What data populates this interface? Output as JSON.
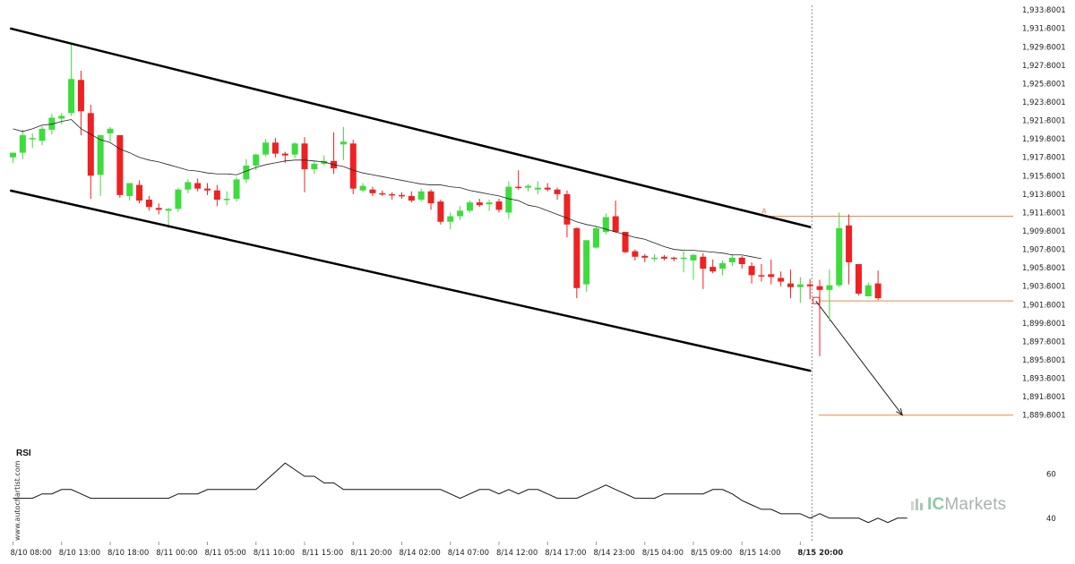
{
  "chart_data": [
    {
      "type": "candlestick",
      "colors": {
        "up": "#3ddc3d",
        "down": "#ee2222",
        "ma": "#222222",
        "channel": "#000000",
        "level": "#e8894a"
      },
      "y_ticks": [
        "1,933.8001",
        "1,931.8001",
        "1,929.8001",
        "1,927.8001",
        "1,925.8001",
        "1,923.8001",
        "1,921.8001",
        "1,919.8001",
        "1,917.8001",
        "1,915.8001",
        "1,913.8001",
        "1,911.8001",
        "1,909.8001",
        "1,907.8001",
        "1,905.8001",
        "1,903.8001",
        "1,901.8001",
        "1,899.8001",
        "1,897.8001",
        "1,895.8001",
        "1,893.8001",
        "1,891.8001",
        "1,889.8001"
      ],
      "ylim": [
        1888.8,
        1934.3
      ],
      "x_ticks": [
        {
          "label": "8/10 08:00",
          "i": 0
        },
        {
          "label": "8/10 13:00",
          "i": 5
        },
        {
          "label": "8/10 18:00",
          "i": 10
        },
        {
          "label": "8/11 00:00",
          "i": 15
        },
        {
          "label": "8/11 05:00",
          "i": 20
        },
        {
          "label": "8/11 10:00",
          "i": 25
        },
        {
          "label": "8/11 15:00",
          "i": 30
        },
        {
          "label": "8/11 20:00",
          "i": 35
        },
        {
          "label": "8/14 02:00",
          "i": 40
        },
        {
          "label": "8/14 07:00",
          "i": 45
        },
        {
          "label": "8/14 12:00",
          "i": 50
        },
        {
          "label": "8/14 17:00",
          "i": 55
        },
        {
          "label": "8/14 23:00",
          "i": 60
        },
        {
          "label": "8/15 04:00",
          "i": 65
        },
        {
          "label": "8/15 09:00",
          "i": 70
        },
        {
          "label": "8/15 14:00",
          "i": 75
        },
        {
          "label": "8/15 20:00",
          "i": 81,
          "bold": true
        }
      ],
      "candles": [
        [
          1917.8,
          1918.3,
          1917.2,
          1918.3
        ],
        [
          1918.3,
          1920.8,
          1917.6,
          1920.2
        ],
        [
          1919.8,
          1920.4,
          1918.8,
          1919.9
        ],
        [
          1919.6,
          1921.2,
          1919.1,
          1920.9
        ],
        [
          1920.8,
          1922.5,
          1920.3,
          1922.1
        ],
        [
          1922.0,
          1922.6,
          1921.4,
          1922.3
        ],
        [
          1922.6,
          1930.1,
          1922.3,
          1926.3
        ],
        [
          1926.2,
          1927.2,
          1920.2,
          1922.8
        ],
        [
          1922.6,
          1923.5,
          1913.3,
          1915.8
        ],
        [
          1915.9,
          1920.2,
          1913.6,
          1920.2
        ],
        [
          1920.4,
          1921.1,
          1919.5,
          1920.9
        ],
        [
          1920.2,
          1920.2,
          1913.4,
          1913.7
        ],
        [
          1913.6,
          1915.0,
          1913.1,
          1915.0
        ],
        [
          1914.8,
          1915.3,
          1912.8,
          1913.1
        ],
        [
          1913.2,
          1913.6,
          1912.0,
          1912.4
        ],
        [
          1912.3,
          1912.8,
          1911.6,
          1912.1
        ],
        [
          1912.0,
          1912.3,
          1910.1,
          1912.2
        ],
        [
          1912.2,
          1914.5,
          1911.9,
          1914.3
        ],
        [
          1914.3,
          1915.4,
          1913.9,
          1915.1
        ],
        [
          1915.0,
          1915.5,
          1914.1,
          1914.4
        ],
        [
          1914.4,
          1915.0,
          1913.7,
          1914.2
        ],
        [
          1914.2,
          1914.8,
          1912.5,
          1913.2
        ],
        [
          1913.3,
          1914.1,
          1912.6,
          1913.3
        ],
        [
          1913.3,
          1915.6,
          1913.0,
          1915.4
        ],
        [
          1915.4,
          1917.6,
          1915.0,
          1916.9
        ],
        [
          1916.9,
          1918.2,
          1916.4,
          1918.1
        ],
        [
          1918.1,
          1919.8,
          1917.9,
          1919.4
        ],
        [
          1919.4,
          1919.9,
          1917.8,
          1918.2
        ],
        [
          1918.2,
          1918.4,
          1917.2,
          1918.0
        ],
        [
          1918.1,
          1919.4,
          1917.7,
          1919.3
        ],
        [
          1919.3,
          1920.0,
          1914.0,
          1916.5
        ],
        [
          1916.5,
          1917.4,
          1916.0,
          1917.1
        ],
        [
          1917.1,
          1918.0,
          1916.9,
          1917.4
        ],
        [
          1917.4,
          1920.5,
          1916.0,
          1916.6
        ],
        [
          1919.2,
          1921.1,
          1917.5,
          1919.5
        ],
        [
          1919.3,
          1919.7,
          1913.8,
          1914.4
        ],
        [
          1914.2,
          1915.0,
          1914.0,
          1914.7
        ],
        [
          1914.3,
          1914.6,
          1913.6,
          1913.9
        ],
        [
          1913.9,
          1914.2,
          1913.6,
          1913.8
        ],
        [
          1913.8,
          1914.0,
          1913.2,
          1913.7
        ],
        [
          1913.7,
          1914.0,
          1913.3,
          1913.6
        ],
        [
          1913.6,
          1914.1,
          1912.9,
          1913.1
        ],
        [
          1913.2,
          1914.4,
          1913.0,
          1914.1
        ],
        [
          1914.1,
          1914.3,
          1912.1,
          1912.8
        ],
        [
          1913.0,
          1913.2,
          1910.5,
          1910.8
        ],
        [
          1910.8,
          1911.8,
          1910.0,
          1911.4
        ],
        [
          1911.4,
          1912.5,
          1911.0,
          1912.0
        ],
        [
          1912.0,
          1913.1,
          1911.8,
          1912.9
        ],
        [
          1912.9,
          1913.3,
          1912.4,
          1912.6
        ],
        [
          1912.7,
          1913.2,
          1912.0,
          1912.9
        ],
        [
          1913.0,
          1913.3,
          1911.8,
          1912.1
        ],
        [
          1911.8,
          1915.2,
          1911.1,
          1914.6
        ],
        [
          1914.6,
          1916.4,
          1914.3,
          1914.5
        ],
        [
          1914.5,
          1914.9,
          1914.1,
          1914.7
        ],
        [
          1914.3,
          1915.2,
          1913.8,
          1914.5
        ],
        [
          1914.5,
          1915.0,
          1914.1,
          1914.3
        ],
        [
          1914.3,
          1914.5,
          1913.2,
          1913.8
        ],
        [
          1913.8,
          1914.2,
          1909.1,
          1910.5
        ],
        [
          1910.1,
          1910.2,
          1902.5,
          1903.6
        ],
        [
          1904.0,
          1908.8,
          1903.2,
          1908.8
        ],
        [
          1908.0,
          1910.3,
          1907.9,
          1910.1
        ],
        [
          1909.7,
          1911.7,
          1909.4,
          1911.3
        ],
        [
          1911.4,
          1913.1,
          1909.6,
          1909.7
        ],
        [
          1909.7,
          1909.7,
          1907.4,
          1907.5
        ],
        [
          1907.6,
          1907.8,
          1906.6,
          1907.0
        ],
        [
          1907.1,
          1907.3,
          1906.4,
          1906.9
        ],
        [
          1906.9,
          1907.3,
          1906.5,
          1906.9
        ],
        [
          1907.0,
          1907.2,
          1906.6,
          1906.8
        ],
        [
          1906.9,
          1907.0,
          1906.5,
          1906.8
        ],
        [
          1906.8,
          1907.6,
          1905.3,
          1906.9
        ],
        [
          1906.6,
          1907.3,
          1904.5,
          1907.2
        ],
        [
          1907.0,
          1907.4,
          1903.5,
          1905.7
        ],
        [
          1905.9,
          1906.7,
          1905.2,
          1905.4
        ],
        [
          1905.7,
          1906.6,
          1905.0,
          1906.3
        ],
        [
          1906.4,
          1907.3,
          1906.0,
          1906.9
        ],
        [
          1906.9,
          1907.1,
          1905.7,
          1906.2
        ],
        [
          1906.0,
          1906.4,
          1904.1,
          1905.0
        ],
        [
          1905.0,
          1906.2,
          1904.3,
          1904.9
        ],
        [
          1905.1,
          1906.7,
          1904.0,
          1904.8
        ],
        [
          1904.7,
          1905.4,
          1903.8,
          1904.3
        ],
        [
          1904.1,
          1905.6,
          1902.5,
          1903.7
        ],
        [
          1903.7,
          1904.8,
          1902.0,
          1904.0
        ],
        [
          1904.0,
          1904.6,
          1902.4,
          1903.8
        ],
        [
          1903.8,
          1904.5,
          1896.2,
          1903.4
        ],
        [
          1903.4,
          1905.6,
          1900.0,
          1903.9
        ],
        [
          1903.9,
          1911.8,
          1903.7,
          1910.1
        ],
        [
          1910.4,
          1911.6,
          1904.0,
          1906.4
        ],
        [
          1906.2,
          1906.2,
          1902.8,
          1903.0
        ],
        [
          1902.7,
          1904.2,
          1902.8,
          1903.9
        ],
        [
          1904.1,
          1905.5,
          1902.3,
          1902.5
        ]
      ],
      "moving_average": [
        1920.9,
        1920.6,
        1920.9,
        1921.3,
        1921.4,
        1921.7,
        1921.9,
        1920.9,
        1920.3,
        1919.7,
        1919.4,
        1918.7,
        1918.3,
        1917.8,
        1917.5,
        1917.3,
        1917.0,
        1916.7,
        1916.4,
        1916.3,
        1916.1,
        1916.0,
        1916.0,
        1915.9,
        1916.3,
        1916.7,
        1917.0,
        1917.2,
        1917.4,
        1917.5,
        1917.5,
        1917.4,
        1917.3,
        1917.0,
        1916.8,
        1916.4,
        1916.1,
        1915.9,
        1915.7,
        1915.5,
        1915.3,
        1915.1,
        1914.9,
        1914.8,
        1914.8,
        1914.6,
        1914.5,
        1914.2,
        1914.0,
        1913.8,
        1913.6,
        1913.3,
        1913.1,
        1912.6,
        1912.4,
        1912.0,
        1911.6,
        1911.2,
        1910.8,
        1910.5,
        1910.3,
        1910.0,
        1909.7,
        1909.4,
        1909.1,
        1908.9,
        1908.5,
        1908.1,
        1907.8,
        1907.7,
        1907.7,
        1907.6,
        1907.5,
        1907.4,
        1907.2,
        1907.2,
        1907.0,
        1906.8
      ],
      "channel_upper": [
        {
          "i": -0.3,
          "y": 1931.8
        },
        {
          "i": 82.1,
          "y": 1910.2
        }
      ],
      "channel_lower": [
        {
          "i": -0.3,
          "y": 1914.2
        },
        {
          "i": 82.1,
          "y": 1894.6
        }
      ],
      "pattern_high": {
        "label": "A",
        "i": 77.3,
        "y": 1911.4
      },
      "entry_level": 1902.2,
      "target_level": 1889.8,
      "forecast_arrow": {
        "from": {
          "i": 82.6,
          "y": 1902.2
        },
        "to": {
          "i": 91.5,
          "y": 1889.8
        }
      },
      "current_time_index": 82.2
    },
    {
      "type": "line",
      "title": "RSI",
      "y_ticks": [
        "60",
        "40"
      ],
      "ylim": [
        33,
        72
      ],
      "values": [
        49,
        49,
        49,
        51,
        51,
        53,
        53,
        51,
        49,
        49,
        49,
        49,
        49,
        49,
        49,
        49,
        49,
        51,
        51,
        51,
        53,
        53,
        53,
        53,
        53,
        53,
        57,
        61,
        65,
        62,
        59,
        59,
        56,
        56,
        53,
        53,
        53,
        53,
        53,
        53,
        53,
        53,
        53,
        53,
        53,
        51,
        49,
        51,
        53,
        53,
        51,
        53,
        51,
        53,
        53,
        51,
        49,
        49,
        49,
        51,
        53,
        55,
        53,
        51,
        49,
        49,
        49,
        51,
        51,
        51,
        51,
        51,
        53,
        53,
        51,
        48,
        46,
        44,
        44,
        42,
        42,
        42,
        40,
        42,
        40,
        40,
        40,
        40,
        38,
        40,
        38,
        40,
        40
      ]
    }
  ],
  "watermark": "www.autochartist.com",
  "brand": {
    "ic": "IC",
    "markets": "Markets"
  }
}
